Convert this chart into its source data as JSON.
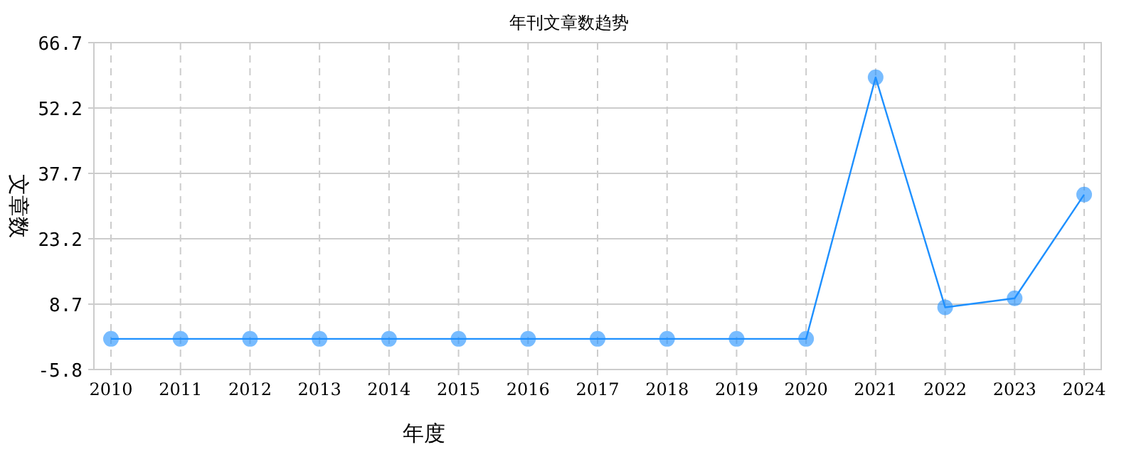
{
  "chart_data": {
    "type": "line",
    "title": "年刊文章数趋势",
    "xlabel": "年度",
    "ylabel": "文章数",
    "categories": [
      "2010",
      "2011",
      "2012",
      "2013",
      "2014",
      "2015",
      "2016",
      "2017",
      "2018",
      "2019",
      "2020",
      "2021",
      "2022",
      "2023",
      "2024"
    ],
    "series": [
      {
        "color": "#1e90ff",
        "values": [
          1,
          1,
          1,
          1,
          1,
          1,
          1,
          1,
          1,
          1,
          1,
          59,
          8,
          10,
          33
        ]
      }
    ],
    "ylim": [
      -5.8,
      66.7
    ],
    "yticks": [
      -5.8,
      8.7,
      23.2,
      37.7,
      52.2,
      66.7
    ],
    "grid": true,
    "marker": "circle",
    "line_style": "solid"
  }
}
